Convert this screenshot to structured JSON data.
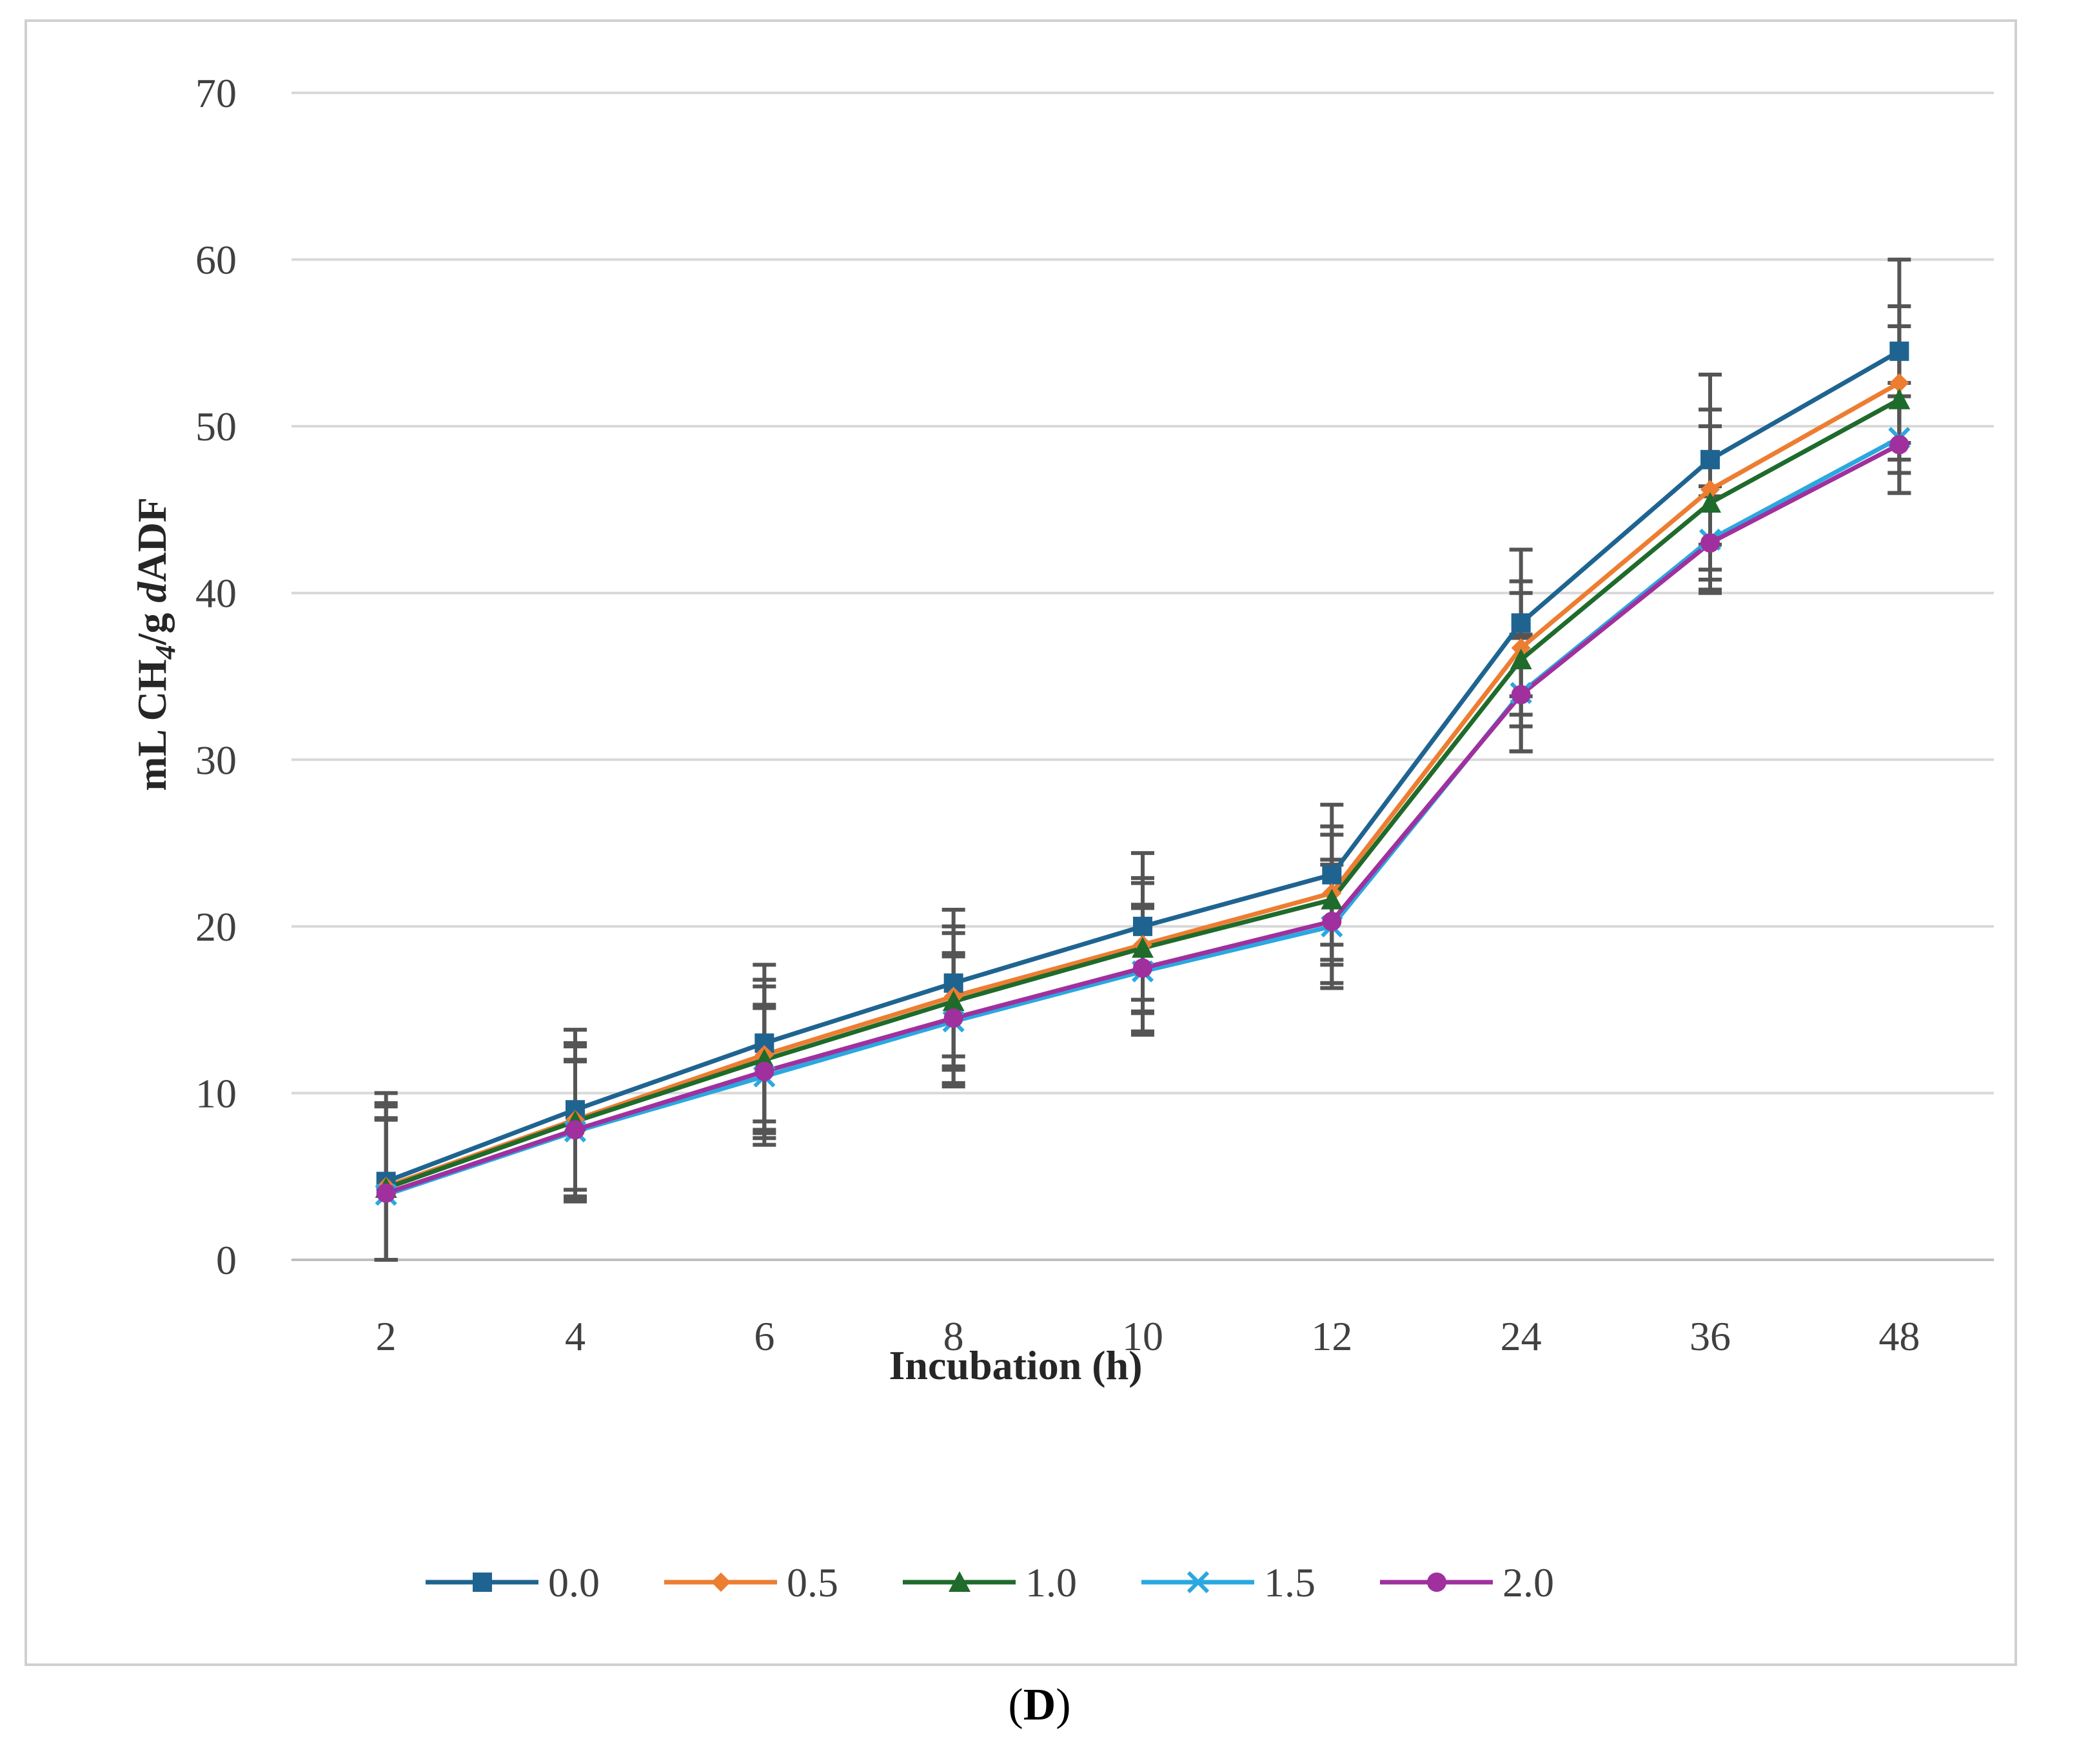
{
  "chart_data": {
    "type": "line",
    "title": "",
    "xlabel": "Incubation (h)",
    "ylabel_parts": {
      "prefix": "mL CH",
      "subscript": "4",
      "middle": "/g ",
      "italic": "d",
      "suffix": "ADF"
    },
    "categories": [
      "2",
      "4",
      "6",
      "8",
      "10",
      "12",
      "24",
      "36",
      "48"
    ],
    "ylim": [
      0,
      70
    ],
    "yticks": [
      0,
      10,
      20,
      30,
      40,
      50,
      60,
      70
    ],
    "grid": true,
    "legend_position": "bottom",
    "series": [
      {
        "name": "0.0",
        "color": "#1f6491",
        "marker": "square",
        "values": [
          4.7,
          9.0,
          13.0,
          16.6,
          20.0,
          23.1,
          38.2,
          48.0,
          54.5
        ],
        "errors": [
          5.3,
          4.8,
          4.7,
          4.4,
          4.4,
          4.2,
          4.4,
          5.1,
          5.5
        ]
      },
      {
        "name": "0.5",
        "color": "#ed7d31",
        "marker": "diamond",
        "values": [
          4.4,
          8.4,
          12.3,
          15.8,
          18.9,
          22.0,
          36.7,
          46.2,
          52.6
        ],
        "errors": [
          5.0,
          4.6,
          4.5,
          4.2,
          4.0,
          4.0,
          4.0,
          4.8,
          4.6
        ]
      },
      {
        "name": "1.0",
        "color": "#1e6b2c",
        "marker": "triangle",
        "values": [
          4.3,
          8.3,
          12.0,
          15.5,
          18.7,
          21.6,
          36.0,
          45.4,
          51.6
        ],
        "errors": [
          4.9,
          4.5,
          4.4,
          4.1,
          3.9,
          3.9,
          4.0,
          4.6,
          4.4
        ]
      },
      {
        "name": "1.5",
        "color": "#2aa8e0",
        "marker": "x",
        "values": [
          3.9,
          7.7,
          11.0,
          14.3,
          17.3,
          20.0,
          34.0,
          43.2,
          49.3
        ],
        "errors": [
          4.5,
          4.2,
          4.1,
          3.9,
          3.8,
          3.7,
          3.5,
          3.2,
          3.3
        ]
      },
      {
        "name": "2.0",
        "color": "#a0309e",
        "marker": "circle",
        "values": [
          4.0,
          7.8,
          11.3,
          14.5,
          17.5,
          20.3,
          33.9,
          43.0,
          48.9
        ],
        "errors": [
          4.5,
          4.2,
          4.0,
          3.9,
          3.8,
          3.7,
          3.4,
          2.8,
          2.9
        ]
      }
    ]
  },
  "panel_label": {
    "open": "(",
    "letter": "D",
    "close": ")"
  }
}
